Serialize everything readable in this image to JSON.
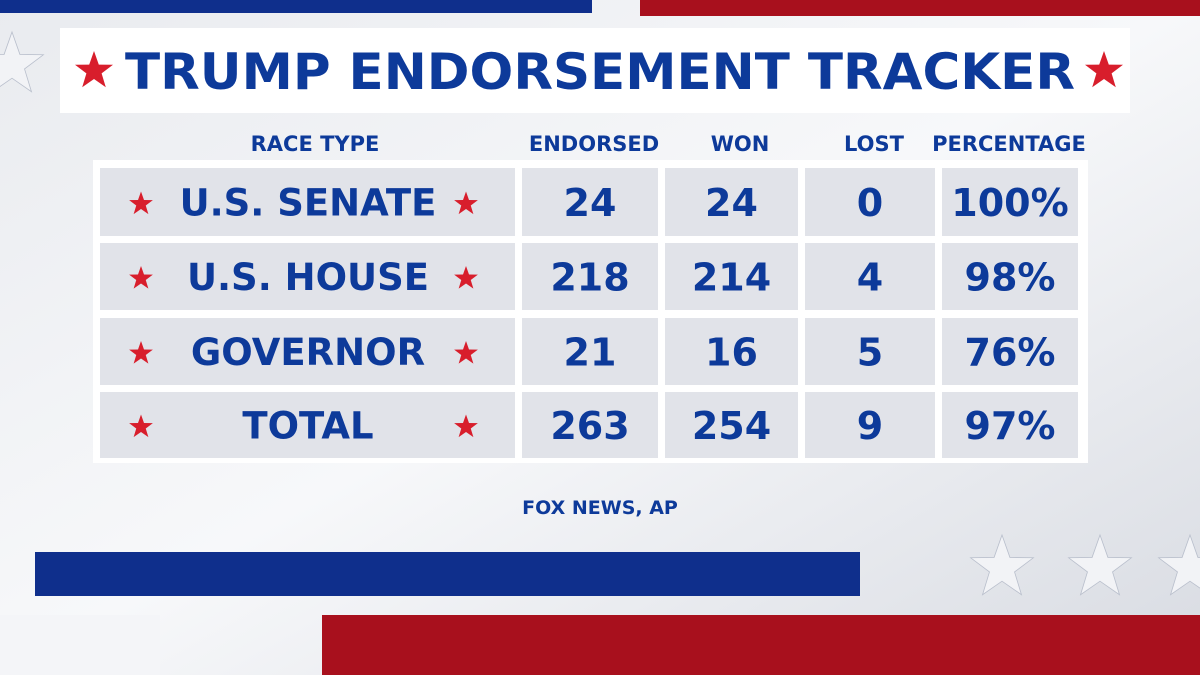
{
  "title": "TRUMP ENDORSEMENT TRACKER",
  "table": {
    "headers": [
      "RACE TYPE",
      "ENDORSED",
      "WON",
      "LOST",
      "PERCENTAGE"
    ],
    "rows": [
      [
        "U.S. SENATE",
        "24",
        "24",
        "0",
        "100%"
      ],
      [
        "U.S. HOUSE",
        "218",
        "214",
        "4",
        "98%"
      ],
      [
        "GOVERNOR",
        "21",
        "16",
        "5",
        "76%"
      ],
      [
        "TOTAL",
        "263",
        "254",
        "9",
        "97%"
      ]
    ]
  },
  "source": "FOX NEWS, AP"
}
